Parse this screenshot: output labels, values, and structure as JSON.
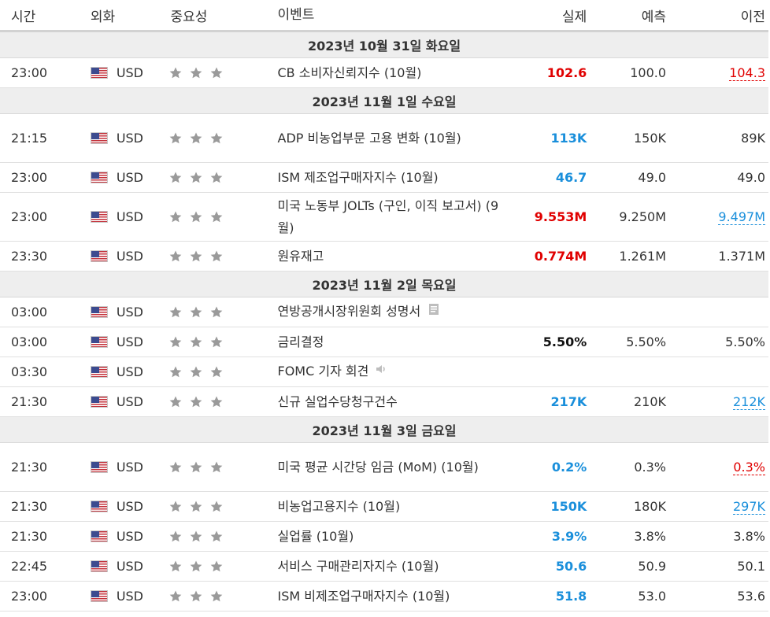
{
  "headers": {
    "time": "시간",
    "currency": "외화",
    "importance": "중요성",
    "event": "이벤트",
    "actual": "실제",
    "forecast": "예측",
    "previous": "이전"
  },
  "groups": [
    {
      "date": "2023년 10월 31일 화요일",
      "rows": [
        {
          "time": "23:00",
          "currency": "USD",
          "event": "CB 소비자신뢰지수 (10월)",
          "actual": "102.6",
          "actual_color": "red",
          "forecast": "100.0",
          "previous": "104.3",
          "previous_style": "red"
        }
      ]
    },
    {
      "date": "2023년 11월 1일 수요일",
      "rows": [
        {
          "time": "21:15",
          "currency": "USD",
          "event": "ADP 비농업부문 고용 변화 (10월)",
          "actual": "113K",
          "actual_color": "blue",
          "forecast": "150K",
          "previous": "89K",
          "previous_style": "plain"
        },
        {
          "time": "23:00",
          "currency": "USD",
          "event": "ISM 제조업구매자지수 (10월)",
          "actual": "46.7",
          "actual_color": "blue",
          "forecast": "49.0",
          "previous": "49.0",
          "previous_style": "plain"
        },
        {
          "time": "23:00",
          "currency": "USD",
          "event": "미국 노동부 JOLTs (구인, 이직 보고서) (9월)",
          "actual": "9.553M",
          "actual_color": "red",
          "forecast": "9.250M",
          "previous": "9.497M",
          "previous_style": "blue"
        },
        {
          "time": "23:30",
          "currency": "USD",
          "event": "원유재고",
          "actual": "0.774M",
          "actual_color": "red",
          "forecast": "1.261M",
          "previous": "1.371M",
          "previous_style": "plain"
        }
      ]
    },
    {
      "date": "2023년 11월 2일 목요일",
      "rows": [
        {
          "time": "03:00",
          "currency": "USD",
          "event": "연방공개시장위원회 성명서",
          "event_icon": "document-icon",
          "actual": "",
          "actual_color": "black",
          "forecast": "",
          "previous": "",
          "previous_style": "plain"
        },
        {
          "time": "03:00",
          "currency": "USD",
          "event": "금리결정",
          "actual": "5.50%",
          "actual_color": "black",
          "forecast": "5.50%",
          "previous": "5.50%",
          "previous_style": "plain"
        },
        {
          "time": "03:30",
          "currency": "USD",
          "event": "FOMC 기자 회견",
          "event_icon": "speaker-icon",
          "actual": "",
          "actual_color": "black",
          "forecast": "",
          "previous": "",
          "previous_style": "plain"
        },
        {
          "time": "21:30",
          "currency": "USD",
          "event": "신규 실업수당청구건수",
          "actual": "217K",
          "actual_color": "blue",
          "forecast": "210K",
          "previous": "212K",
          "previous_style": "blue"
        }
      ]
    },
    {
      "date": "2023년 11월 3일 금요일",
      "rows": [
        {
          "time": "21:30",
          "currency": "USD",
          "event": "미국 평균 시간당 임금 (MoM) (10월)",
          "actual": "0.2%",
          "actual_color": "blue",
          "forecast": "0.3%",
          "previous": "0.3%",
          "previous_style": "red"
        },
        {
          "time": "21:30",
          "currency": "USD",
          "event": "비농업고용지수 (10월)",
          "actual": "150K",
          "actual_color": "blue",
          "forecast": "180K",
          "previous": "297K",
          "previous_style": "blue"
        },
        {
          "time": "21:30",
          "currency": "USD",
          "event": "실업률 (10월)",
          "actual": "3.9%",
          "actual_color": "blue",
          "forecast": "3.8%",
          "previous": "3.8%",
          "previous_style": "plain"
        },
        {
          "time": "22:45",
          "currency": "USD",
          "event": "서비스 구매관리자지수 (10월)",
          "actual": "50.6",
          "actual_color": "blue",
          "forecast": "50.9",
          "previous": "50.1",
          "previous_style": "plain"
        },
        {
          "time": "23:00",
          "currency": "USD",
          "event": "ISM 비제조업구매자지수 (10월)",
          "actual": "51.8",
          "actual_color": "blue",
          "forecast": "53.0",
          "previous": "53.6",
          "previous_style": "plain"
        }
      ]
    }
  ],
  "importance_stars": 3,
  "colors": {
    "red": "#e00000",
    "blue": "#1a8fdb",
    "star": "#9a9a9a",
    "date_bg": "#eeeeee"
  }
}
